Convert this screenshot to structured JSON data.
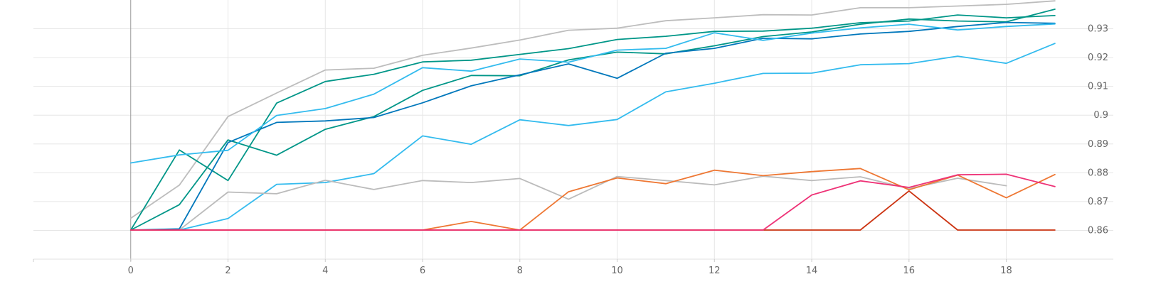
{
  "chart_data": {
    "type": "line",
    "title": "",
    "xlabel": "",
    "ylabel": "",
    "xlim": [
      -2,
      20.2
    ],
    "ylim": [
      0.85,
      0.94
    ],
    "grid": true,
    "legend": "none",
    "x_ticks": [
      0,
      2,
      4,
      6,
      8,
      10,
      12,
      14,
      16,
      18
    ],
    "y_ticks": [
      0.86,
      0.87,
      0.88,
      0.89,
      0.9,
      0.91,
      0.92,
      0.93
    ],
    "y_tick_labels": [
      "0.86",
      "0.87",
      "0.88",
      "0.89",
      "0.9",
      "0.91",
      "0.92",
      "0.93"
    ],
    "x": [
      0,
      1,
      2,
      3,
      4,
      5,
      6,
      7,
      8,
      9,
      10,
      11,
      12,
      13,
      14,
      15,
      16,
      17,
      18,
      19
    ],
    "series": [
      {
        "color": "#bdbdbd",
        "values": [
          0.8642,
          0.8757,
          0.8995,
          0.9077,
          0.9157,
          0.9163,
          0.9208,
          0.9233,
          0.9261,
          0.9295,
          0.9302,
          0.9328,
          0.9338,
          0.9349,
          0.9348,
          0.9373,
          0.9373,
          0.9379,
          0.9385,
          0.9397
        ]
      },
      {
        "color": "#009688",
        "values": [
          0.8601,
          0.8689,
          0.8914,
          0.8861,
          0.8951,
          0.8995,
          0.9086,
          0.9138,
          0.9137,
          0.9192,
          0.9219,
          0.9213,
          0.9241,
          0.9273,
          0.9289,
          0.9316,
          0.9334,
          0.9327,
          0.9324,
          0.9368
        ]
      },
      {
        "color": "#009688",
        "values": [
          0.8601,
          0.8879,
          0.8773,
          0.9042,
          0.9117,
          0.9142,
          0.9185,
          0.9191,
          0.9211,
          0.9231,
          0.9263,
          0.9274,
          0.9291,
          0.9292,
          0.9302,
          0.9321,
          0.9327,
          0.9348,
          0.9338,
          0.9346
        ]
      },
      {
        "color": "#0077bb",
        "values": [
          0.8601,
          0.8605,
          0.8905,
          0.8975,
          0.898,
          0.8992,
          0.9043,
          0.9102,
          0.914,
          0.9178,
          0.9128,
          0.9215,
          0.9232,
          0.9267,
          0.9265,
          0.9282,
          0.9291,
          0.9308,
          0.9322,
          0.9319
        ]
      },
      {
        "color": "#33bbee",
        "values": [
          0.8834,
          0.8862,
          0.8878,
          0.8999,
          0.9023,
          0.9073,
          0.9165,
          0.9153,
          0.9195,
          0.9184,
          0.9226,
          0.9232,
          0.9286,
          0.926,
          0.9285,
          0.9303,
          0.9316,
          0.9296,
          0.9308,
          0.9317
        ]
      },
      {
        "color": "#33bbee",
        "values": [
          0.8601,
          0.8601,
          0.8641,
          0.876,
          0.8766,
          0.8797,
          0.8928,
          0.8899,
          0.8984,
          0.8964,
          0.8985,
          0.9081,
          0.9111,
          0.9145,
          0.9146,
          0.9175,
          0.9179,
          0.9205,
          0.918,
          0.9249
        ]
      },
      {
        "color": "#bbbbbb",
        "values": [
          0.8601,
          0.8601,
          0.8733,
          0.8727,
          0.8774,
          0.8742,
          0.8773,
          0.8766,
          0.878,
          0.8708,
          0.8787,
          0.8773,
          0.8758,
          0.8788,
          0.8773,
          0.8786,
          0.8745,
          0.8781,
          0.8755,
          null
        ]
      },
      {
        "color": "#ee7733",
        "values": [
          0.8601,
          0.8601,
          0.8601,
          0.8601,
          0.8601,
          0.8601,
          0.8601,
          0.8631,
          0.8601,
          0.8734,
          0.8782,
          0.8762,
          0.8809,
          0.879,
          0.8804,
          0.8815,
          0.8741,
          0.8792,
          0.8713,
          0.8794
        ]
      },
      {
        "color": "#cc3311",
        "values": [
          0.8601,
          0.8601,
          0.8601,
          0.8601,
          0.8601,
          0.8601,
          0.8601,
          0.8601,
          0.8601,
          0.8601,
          0.8601,
          0.8601,
          0.8601,
          0.8601,
          0.8601,
          0.8601,
          0.8737,
          0.8601,
          0.8601,
          0.8601
        ]
      },
      {
        "color": "#ee3377",
        "values": [
          0.8601,
          0.8601,
          0.8601,
          0.8601,
          0.8601,
          0.8601,
          0.8601,
          0.8601,
          0.8601,
          0.8601,
          0.8601,
          0.8601,
          0.8601,
          0.8601,
          0.8723,
          0.8772,
          0.8749,
          0.8793,
          0.8795,
          0.8752
        ]
      }
    ],
    "colors": {
      "axis": "#999999",
      "grid": "#e6e6e6",
      "tick_label": "#666666"
    }
  }
}
